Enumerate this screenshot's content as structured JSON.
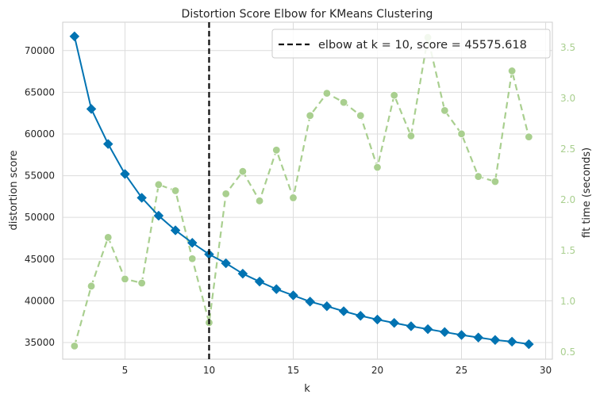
{
  "chart_data": {
    "type": "line",
    "title": "Distortion Score Elbow for KMeans Clustering",
    "xlabel": "k",
    "ylabel": "distortion score",
    "y2label": "fit time (seconds)",
    "xlim": [
      1.3,
      30.4
    ],
    "ylim": [
      33000,
      73400
    ],
    "y2lim": [
      0.43,
      3.75
    ],
    "xticks": [
      5,
      10,
      15,
      20,
      25,
      30
    ],
    "yticks": [
      35000,
      40000,
      45000,
      50000,
      55000,
      60000,
      65000,
      70000
    ],
    "y2ticks": [
      0.5,
      1.0,
      1.5,
      2.0,
      2.5,
      3.0,
      3.5
    ],
    "y2tick_labels": [
      "0.5",
      "1.0",
      "1.5",
      "2.0",
      "2.5",
      "3.0",
      "3.5"
    ],
    "grid": true,
    "legend_position": "top-right",
    "elbow": {
      "k": 10,
      "score": 45575.618,
      "label": "elbow at k = 10, score = 45575.618",
      "color": "#111111"
    },
    "series": [
      {
        "name": "distortion score",
        "axis": "left",
        "color": "#0173B2",
        "x": [
          2,
          3,
          4,
          5,
          6,
          7,
          8,
          9,
          10,
          11,
          12,
          13,
          14,
          15,
          16,
          17,
          18,
          19,
          20,
          21,
          22,
          23,
          24,
          25,
          26,
          27,
          28,
          29
        ],
        "values": [
          71700,
          63000,
          58800,
          55200,
          52350,
          50200,
          48450,
          46950,
          45575,
          44500,
          43250,
          42300,
          41400,
          40650,
          39900,
          39350,
          38750,
          38200,
          37750,
          37350,
          36950,
          36600,
          36250,
          35900,
          35600,
          35300,
          35100,
          34800
        ]
      },
      {
        "name": "fit time",
        "axis": "right",
        "color": "#A9CF8F",
        "x": [
          2,
          3,
          4,
          5,
          6,
          7,
          8,
          9,
          10,
          11,
          12,
          13,
          14,
          15,
          16,
          17,
          18,
          19,
          20,
          21,
          22,
          23,
          24,
          25,
          26,
          27,
          28,
          29
        ],
        "values": [
          0.56,
          1.15,
          1.63,
          1.22,
          1.18,
          2.15,
          2.09,
          1.42,
          0.79,
          2.06,
          2.28,
          1.99,
          2.49,
          2.02,
          2.83,
          3.05,
          2.96,
          2.83,
          2.32,
          3.03,
          2.63,
          3.6,
          2.88,
          2.65,
          2.23,
          2.18,
          3.27,
          2.62
        ]
      }
    ]
  }
}
